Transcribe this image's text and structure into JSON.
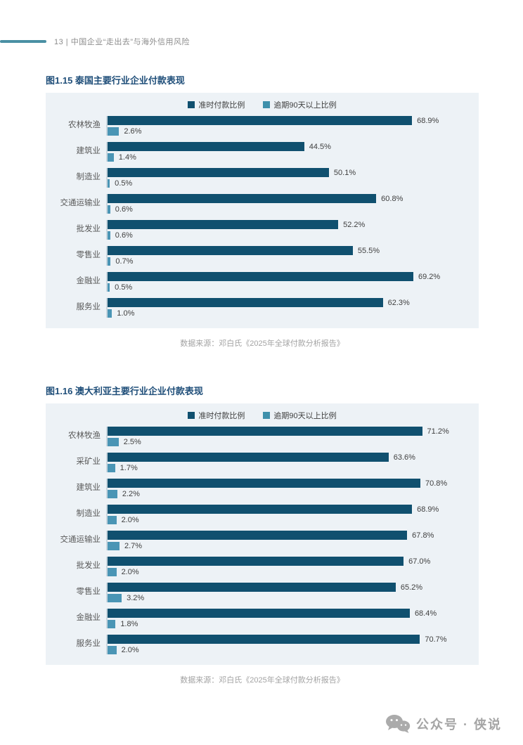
{
  "header": {
    "text": "13 | 中国企业“走出去”与海外信用风险"
  },
  "colors": {
    "accent_line": "#4a90a4",
    "title_blue": "#1f4e79",
    "panel_background": "#edf2f6",
    "bar_ontime": "#10506f",
    "bar_overdue": "#4a95b5"
  },
  "chart_data": [
    {
      "type": "bar",
      "orientation": "horizontal",
      "title": "图1.15 泰国主要行业企业付款表现",
      "legend_position": "top",
      "categories": [
        "农林牧渔",
        "建筑业",
        "制造业",
        "交通运输业",
        "批发业",
        "零售业",
        "金融业",
        "服务业"
      ],
      "series": [
        {
          "name": "准时付款比例",
          "color": "#10506f",
          "values": [
            68.9,
            44.5,
            50.1,
            60.8,
            52.2,
            55.5,
            69.2,
            62.3
          ]
        },
        {
          "name": "逾期90天以上比例",
          "color": "#4a95b5",
          "values": [
            2.6,
            1.4,
            0.5,
            0.6,
            0.6,
            0.7,
            0.5,
            1.0
          ]
        }
      ],
      "value_suffix": "%",
      "axis_max": 84,
      "grid": false,
      "source": "数据来源：邓白氏《2025年全球付款分析报告》"
    },
    {
      "type": "bar",
      "orientation": "horizontal",
      "title": "图1.16 澳大利亚主要行业企业付款表现",
      "legend_position": "top",
      "categories": [
        "农林牧渔",
        "采矿业",
        "建筑业",
        "制造业",
        "交通运输业",
        "批发业",
        "零售业",
        "金融业",
        "服务业"
      ],
      "series": [
        {
          "name": "准时付款比例",
          "color": "#10506f",
          "values": [
            71.2,
            63.6,
            70.8,
            68.9,
            67.8,
            67.0,
            65.2,
            68.4,
            70.7
          ]
        },
        {
          "name": "逾期90天以上比例",
          "color": "#4a95b5",
          "values": [
            2.5,
            1.7,
            2.2,
            2.0,
            2.7,
            2.0,
            3.2,
            1.8,
            2.0
          ]
        }
      ],
      "value_suffix": "%",
      "axis_max": 84,
      "grid": false,
      "source": "数据来源：邓白氏《2025年全球付款分析报告》"
    }
  ],
  "footer": {
    "label": "公众号 · 侠说"
  }
}
